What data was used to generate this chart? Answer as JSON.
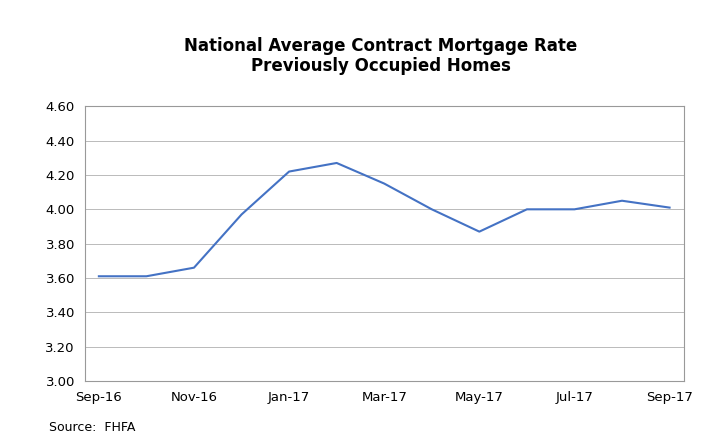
{
  "title_line1": "National Average Contract Mortgage Rate",
  "title_line2": "Previously Occupied Homes",
  "source": "Source:  FHFA",
  "x_tick_labels": [
    "Sep-16",
    "Nov-16",
    "Jan-17",
    "Mar-17",
    "May-17",
    "Jul-17",
    "Sep-17"
  ],
  "x_tick_positions": [
    0,
    2,
    4,
    6,
    8,
    10,
    12
  ],
  "values": [
    3.61,
    3.61,
    3.66,
    3.97,
    4.22,
    4.27,
    4.15,
    4.0,
    3.87,
    4.0,
    4.0,
    4.05,
    4.01
  ],
  "ylim": [
    3.0,
    4.6
  ],
  "yticks": [
    3.0,
    3.2,
    3.4,
    3.6,
    3.8,
    4.0,
    4.2,
    4.4,
    4.6
  ],
  "line_color": "#4472C4",
  "background_color": "#ffffff",
  "grid_color": "#b0b0b0",
  "border_color": "#999999",
  "title_fontsize": 12,
  "tick_fontsize": 9.5,
  "source_fontsize": 9
}
